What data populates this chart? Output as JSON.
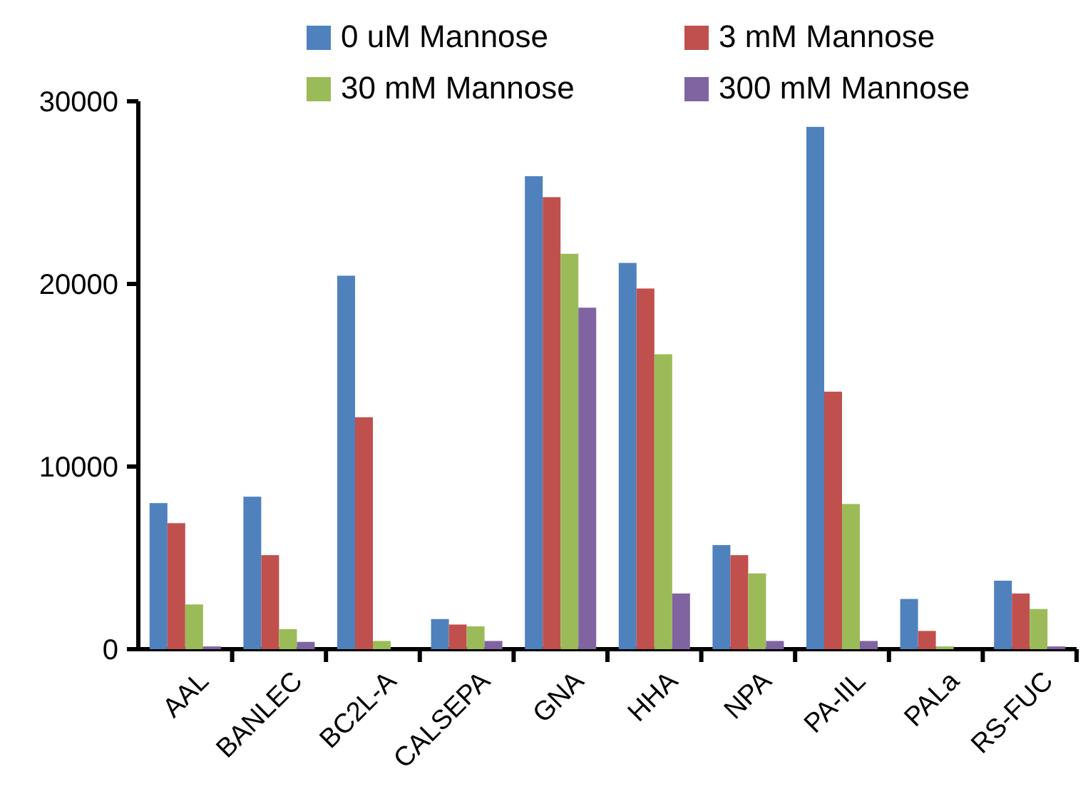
{
  "chart_data": {
    "type": "bar",
    "categories": [
      "AAL",
      "BANLEC",
      "BC2L-A",
      "CALSEPA",
      "GNA",
      "HHA",
      "NPA",
      "PA-IIL",
      "PALa",
      "RS-FUC"
    ],
    "series": [
      {
        "name": "0 uM Mannose",
        "color": "#4f81bd",
        "values": [
          8000,
          8350,
          20450,
          1650,
          25900,
          21150,
          5700,
          28600,
          2750,
          3750
        ]
      },
      {
        "name": "3 mM Mannose",
        "color": "#c0504d",
        "values": [
          6900,
          5150,
          12700,
          1350,
          24750,
          19750,
          5150,
          14100,
          1000,
          3050
        ]
      },
      {
        "name": "30 mM Mannose",
        "color": "#9bbb59",
        "values": [
          2450,
          1100,
          450,
          1250,
          21650,
          16150,
          4150,
          7950,
          150,
          2200
        ]
      },
      {
        "name": "300 mM Mannose",
        "color": "#8064a2",
        "values": [
          150,
          400,
          0,
          450,
          18700,
          3050,
          450,
          450,
          0,
          150
        ]
      }
    ],
    "ylim": [
      0,
      30000
    ],
    "yticks": [
      0,
      10000,
      20000,
      30000
    ],
    "legend": "top",
    "grid": false
  }
}
